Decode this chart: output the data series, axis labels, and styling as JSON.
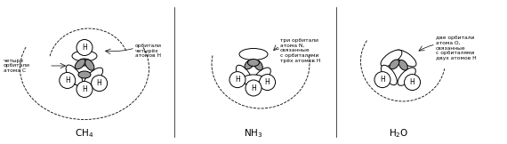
{
  "title_ch4": "CH$_4$",
  "title_nh3": "NH$_3$",
  "title_h2o": "H$_2$O",
  "label_ch4_left": "четыре\nорбитали\nатома C",
  "label_ch4_right": "орбитали\nчетырёх\nатомов Н",
  "label_nh3_right": "три орбитали\nатома N,\nсвязанные\nс орбиталями\nтрёх атомов Н",
  "label_h2o_right": "две орбитали\nатома О,\nсвязанные\nс орбиталями\nдвух атомов Н",
  "bg_color": "#ffffff",
  "line_color": "#000000",
  "gray_fill": "#999999"
}
